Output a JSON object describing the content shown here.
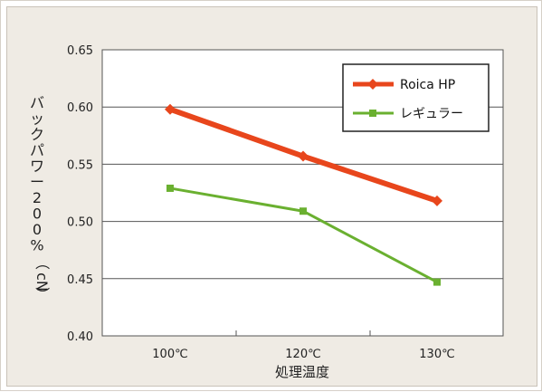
{
  "chart_data": {
    "type": "line",
    "xlabel": "処理温度",
    "ylabel_chars": [
      "バ",
      "ッ",
      "ク",
      "パ",
      "ワ",
      "ー",
      "2",
      "0",
      "0",
      "%",
      "（",
      "cN",
      "）"
    ],
    "categories": [
      "100℃",
      "120℃",
      "130℃"
    ],
    "ylim": [
      0.4,
      0.65
    ],
    "yticks": [
      "0.40",
      "0.45",
      "0.50",
      "0.55",
      "0.60",
      "0.65"
    ],
    "grid": true,
    "legend_position": "top-right",
    "series": [
      {
        "name": "Roica HP",
        "values": [
          0.598,
          0.557,
          0.518
        ],
        "color": "#e8461c",
        "marker": "diamond"
      },
      {
        "name": "レギュラー",
        "values": [
          0.529,
          0.509,
          0.447
        ],
        "color": "#6ab030",
        "marker": "square"
      }
    ]
  }
}
